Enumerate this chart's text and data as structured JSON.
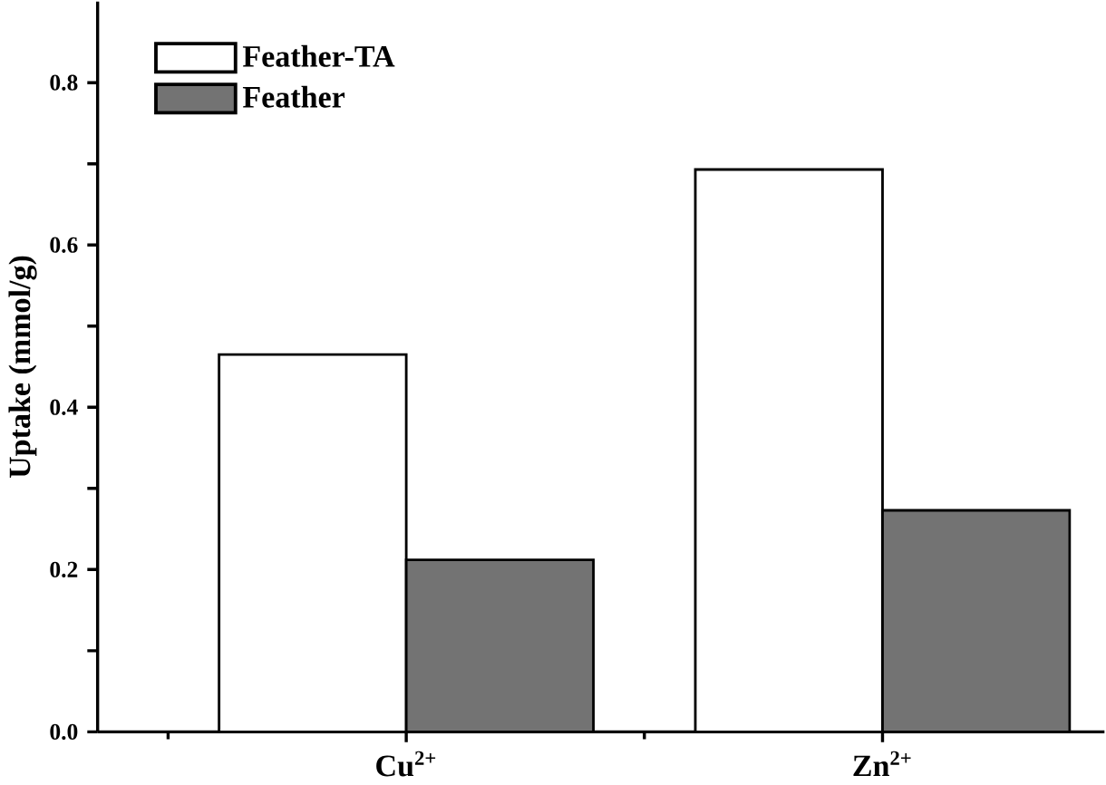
{
  "chart_data": {
    "type": "bar",
    "ylabel": "Uptake (mmol/g)",
    "categories": [
      "Cu$^{2+}$",
      "Zn$^{2+}$"
    ],
    "series": [
      {
        "name": "Feather-TA",
        "color": "#ffffff",
        "values": [
          0.465,
          0.693
        ]
      },
      {
        "name": "Feather",
        "color": "#737373",
        "values": [
          0.212,
          0.273
        ]
      }
    ],
    "ylim": [
      0,
      0.9
    ],
    "yticks": [
      {
        "value": 0.0,
        "label": "0.0"
      },
      {
        "value": 0.1,
        "label": null
      },
      {
        "value": 0.2,
        "label": "0.2"
      },
      {
        "value": 0.3,
        "label": null
      },
      {
        "value": 0.4,
        "label": "0.4"
      },
      {
        "value": 0.5,
        "label": null
      },
      {
        "value": 0.6,
        "label": "0.6"
      },
      {
        "value": 0.7,
        "label": null
      },
      {
        "value": 0.8,
        "label": "0.8"
      }
    ],
    "legend": "top left",
    "grid": false
  }
}
